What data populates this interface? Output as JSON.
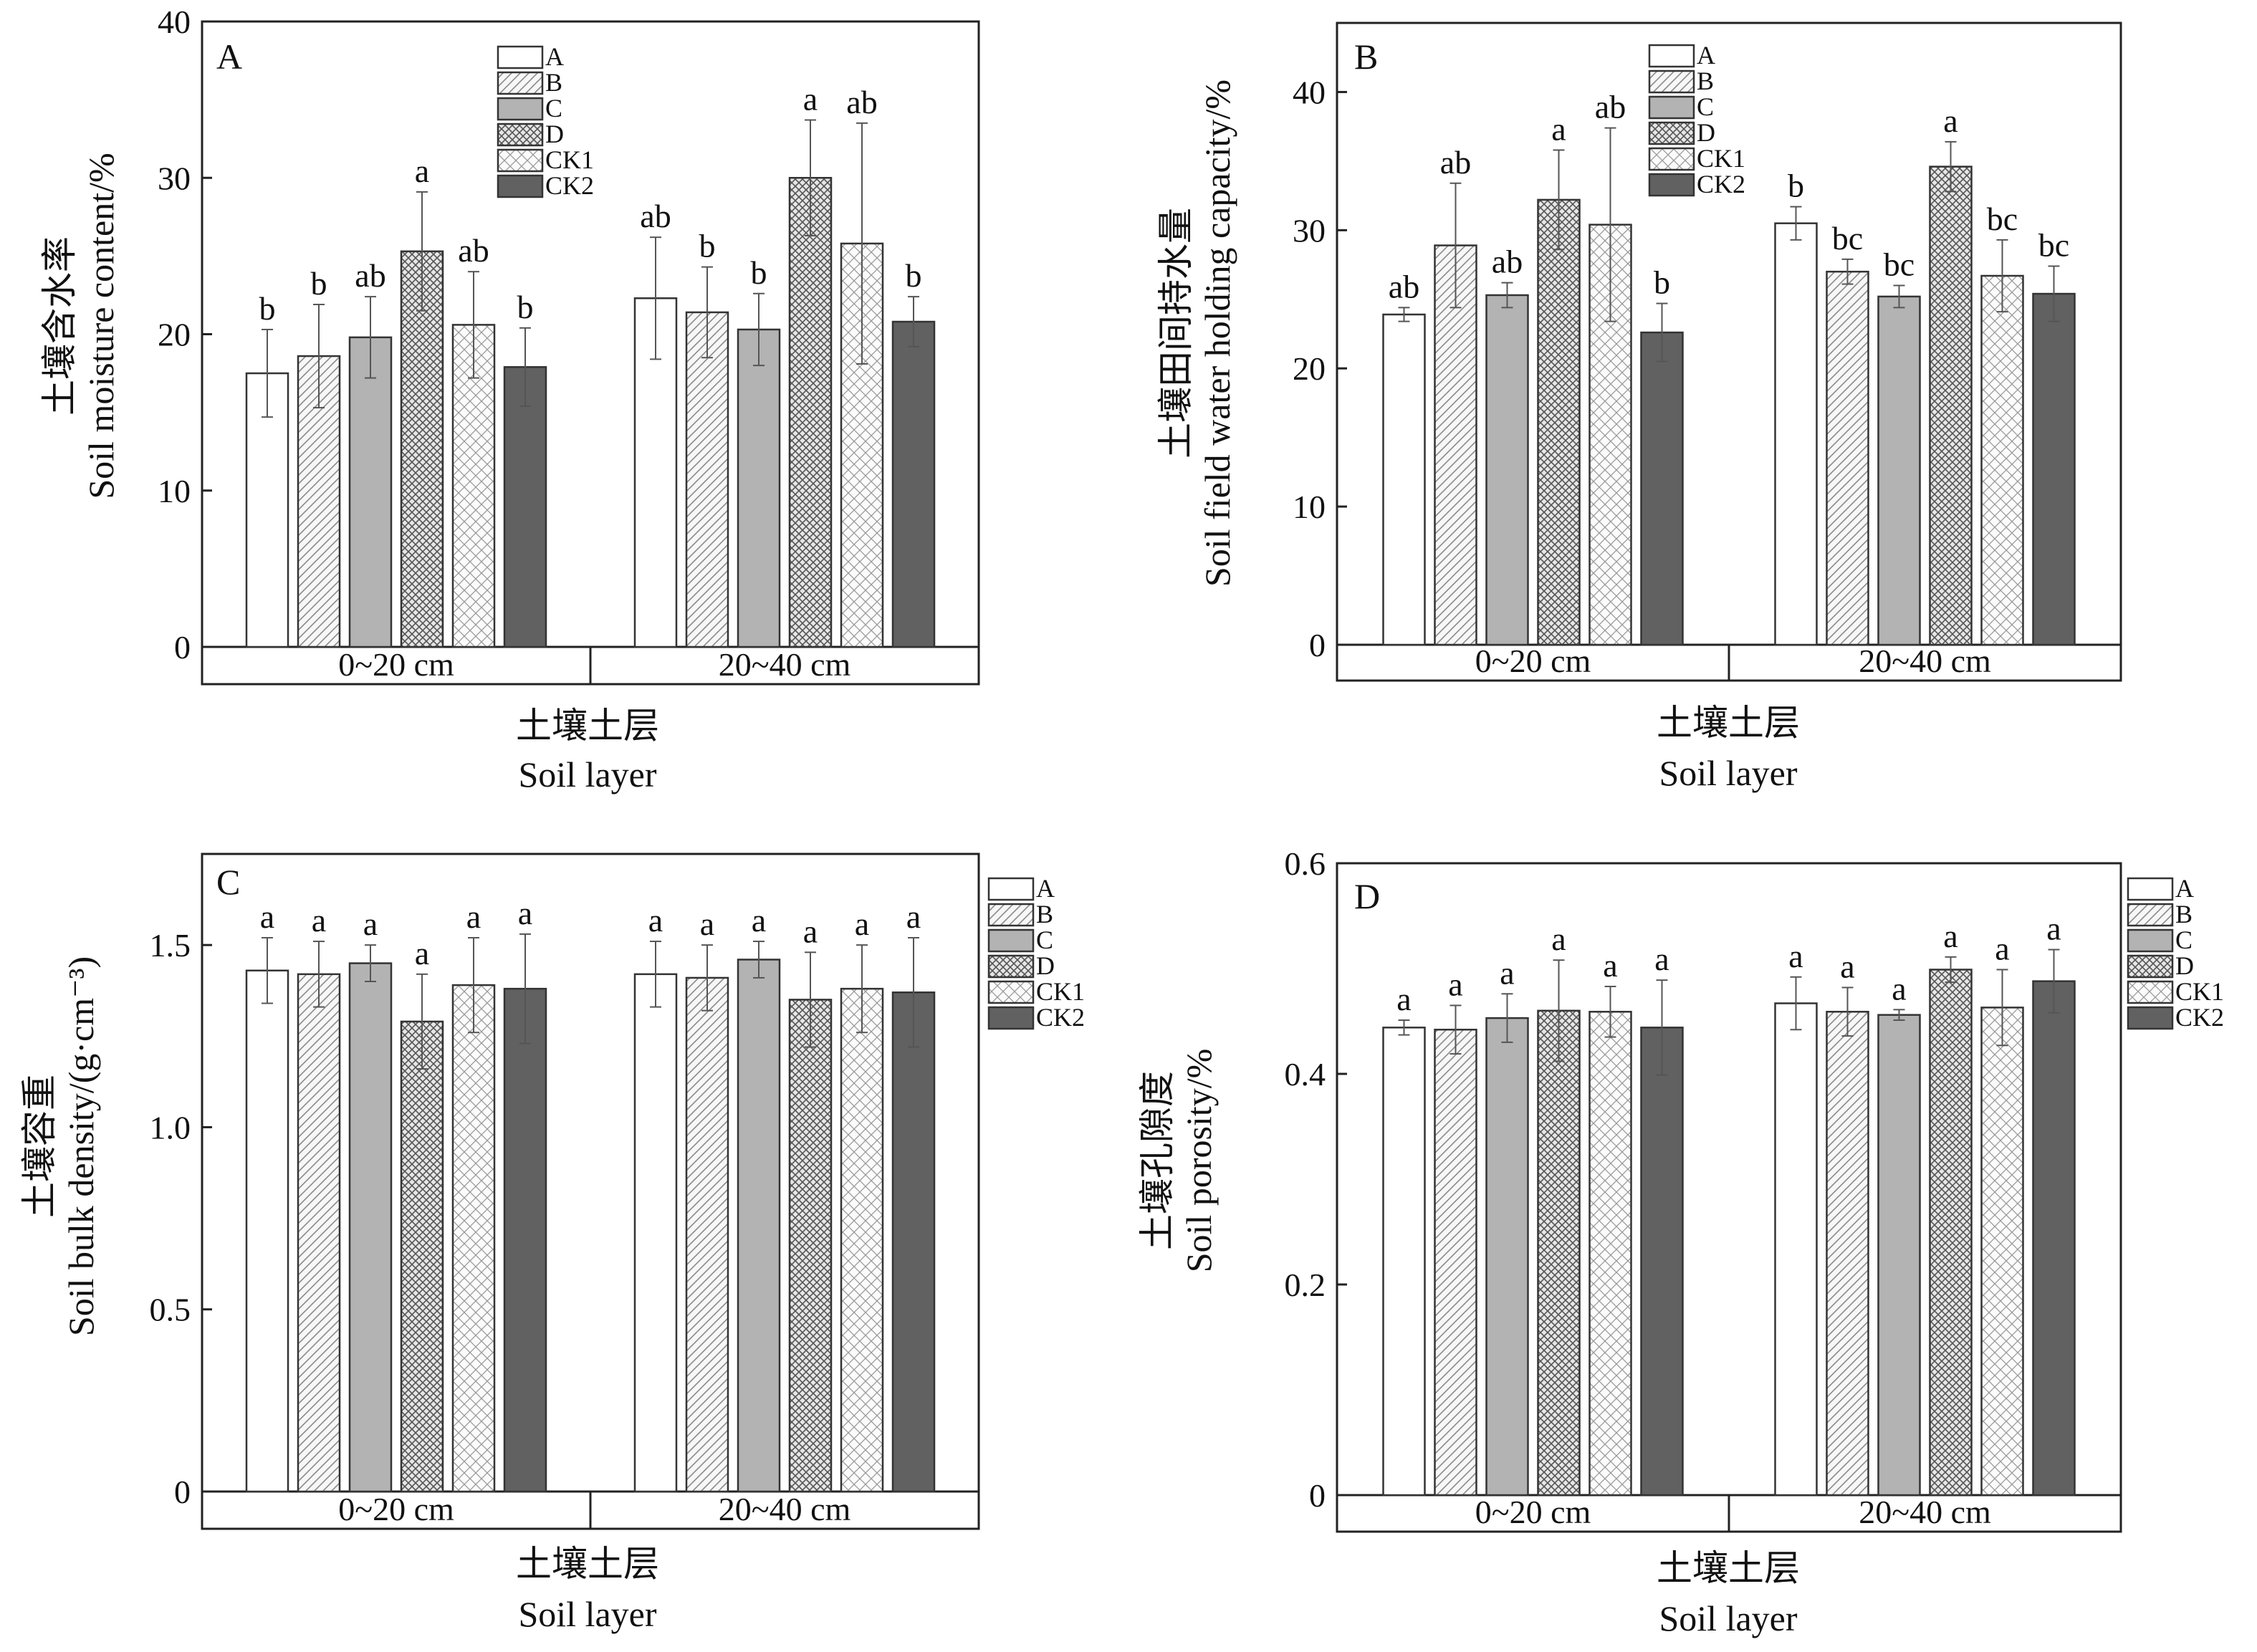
{
  "colors": {
    "axis": "#222222",
    "A": "#ffffff",
    "B": "#f1f1f1",
    "C": "#b3b3b3",
    "D": "#d9d9d9",
    "CK1": "#f3f3f3",
    "CK2": "#616161"
  },
  "legend_entries": [
    "A",
    "B",
    "C",
    "D",
    "CK1",
    "CK2"
  ],
  "chart_data": [
    {
      "type": "bar",
      "panel": "A",
      "ylabel_cn": "土壤含水率",
      "ylabel_en": "Soil moisture content/%",
      "xlabel_cn": "土壤土层",
      "xlabel_en": "Soil layer",
      "categories": [
        "0~20 cm",
        "20~40 cm"
      ],
      "ylim": [
        0,
        40
      ],
      "yticks": [
        "0",
        "10",
        "20",
        "30",
        "40"
      ],
      "legend_position": "top-center",
      "series": [
        {
          "name": "A",
          "values": [
            17.5,
            22.3
          ],
          "errors": [
            2.8,
            3.9
          ],
          "letters": [
            "b",
            "ab"
          ]
        },
        {
          "name": "B",
          "values": [
            18.6,
            21.4
          ],
          "errors": [
            3.3,
            2.9
          ],
          "letters": [
            "b",
            "b"
          ]
        },
        {
          "name": "C",
          "values": [
            19.8,
            20.3
          ],
          "errors": [
            2.6,
            2.3
          ],
          "letters": [
            "ab",
            "b"
          ]
        },
        {
          "name": "D",
          "values": [
            25.3,
            30.0
          ],
          "errors": [
            3.8,
            3.7
          ],
          "letters": [
            "a",
            "a"
          ]
        },
        {
          "name": "CK1",
          "values": [
            20.6,
            25.8
          ],
          "errors": [
            3.4,
            7.7
          ],
          "letters": [
            "ab",
            "ab"
          ]
        },
        {
          "name": "CK2",
          "values": [
            17.9,
            20.8
          ],
          "errors": [
            2.5,
            1.6
          ],
          "letters": [
            "b",
            "b"
          ]
        }
      ]
    },
    {
      "type": "bar",
      "panel": "B",
      "ylabel_cn": "土壤田间持水量",
      "ylabel_en": "Soil field water holding capacity/%",
      "xlabel_cn": "土壤土层",
      "xlabel_en": "Soil layer",
      "categories": [
        "0~20 cm",
        "20~40 cm"
      ],
      "ylim": [
        0,
        45
      ],
      "yticks": [
        "0",
        "10",
        "20",
        "30",
        "40"
      ],
      "legend_position": "top-center",
      "series": [
        {
          "name": "A",
          "values": [
            23.9,
            30.5
          ],
          "errors": [
            0.5,
            1.2
          ],
          "letters": [
            "ab",
            "b"
          ]
        },
        {
          "name": "B",
          "values": [
            28.9,
            27.0
          ],
          "errors": [
            4.5,
            0.9
          ],
          "letters": [
            "ab",
            "bc"
          ]
        },
        {
          "name": "C",
          "values": [
            25.3,
            25.2
          ],
          "errors": [
            0.9,
            0.8
          ],
          "letters": [
            "ab",
            "bc"
          ]
        },
        {
          "name": "D",
          "values": [
            32.2,
            34.6
          ],
          "errors": [
            3.6,
            1.8
          ],
          "letters": [
            "a",
            "a"
          ]
        },
        {
          "name": "CK1",
          "values": [
            30.4,
            26.7
          ],
          "errors": [
            7.0,
            2.6
          ],
          "letters": [
            "ab",
            "bc"
          ]
        },
        {
          "name": "CK2",
          "values": [
            22.6,
            25.4
          ],
          "errors": [
            2.1,
            2.0
          ],
          "letters": [
            "b",
            "bc"
          ]
        }
      ]
    },
    {
      "type": "bar",
      "panel": "C",
      "ylabel_cn": "土壤容重",
      "ylabel_en": "Soil bulk density/(g·cm⁻³)",
      "xlabel_cn": "土壤土层",
      "xlabel_en": "Soil layer",
      "categories": [
        "0~20 cm",
        "20~40 cm"
      ],
      "ylim": [
        0,
        1.75
      ],
      "yticks": [
        "0",
        "0.5",
        "1.0",
        "1.5"
      ],
      "legend_position": "right",
      "series": [
        {
          "name": "A",
          "values": [
            1.43,
            1.42
          ],
          "errors": [
            0.09,
            0.09
          ],
          "letters": [
            "a",
            "a"
          ]
        },
        {
          "name": "B",
          "values": [
            1.42,
            1.41
          ],
          "errors": [
            0.09,
            0.09
          ],
          "letters": [
            "a",
            "a"
          ]
        },
        {
          "name": "C",
          "values": [
            1.45,
            1.46
          ],
          "errors": [
            0.05,
            0.05
          ],
          "letters": [
            "a",
            "a"
          ]
        },
        {
          "name": "D",
          "values": [
            1.29,
            1.35
          ],
          "errors": [
            0.13,
            0.13
          ],
          "letters": [
            "a",
            "a"
          ]
        },
        {
          "name": "CK1",
          "values": [
            1.39,
            1.38
          ],
          "errors": [
            0.13,
            0.12
          ],
          "letters": [
            "a",
            "a"
          ]
        },
        {
          "name": "CK2",
          "values": [
            1.38,
            1.37
          ],
          "errors": [
            0.15,
            0.15
          ],
          "letters": [
            "a",
            "a"
          ]
        }
      ]
    },
    {
      "type": "bar",
      "panel": "D",
      "ylabel_cn": "土壤孔隙度",
      "ylabel_en": "Soil porosity/%",
      "xlabel_cn": "土壤土层",
      "xlabel_en": "Soil layer",
      "categories": [
        "0~20 cm",
        "20~40 cm"
      ],
      "ylim": [
        0,
        0.6
      ],
      "yticks": [
        "0",
        "0.2",
        "0.4",
        "0.6"
      ],
      "legend_position": "right",
      "series": [
        {
          "name": "A",
          "values": [
            0.444,
            0.467
          ],
          "errors": [
            0.007,
            0.025
          ],
          "letters": [
            "a",
            "a"
          ]
        },
        {
          "name": "B",
          "values": [
            0.442,
            0.459
          ],
          "errors": [
            0.023,
            0.023
          ],
          "letters": [
            "a",
            "a"
          ]
        },
        {
          "name": "C",
          "values": [
            0.453,
            0.456
          ],
          "errors": [
            0.023,
            0.005
          ],
          "letters": [
            "a",
            "a"
          ]
        },
        {
          "name": "D",
          "values": [
            0.46,
            0.499
          ],
          "errors": [
            0.048,
            0.012
          ],
          "letters": [
            "a",
            "a"
          ]
        },
        {
          "name": "CK1",
          "values": [
            0.459,
            0.463
          ],
          "errors": [
            0.024,
            0.036
          ],
          "letters": [
            "a",
            "a"
          ]
        },
        {
          "name": "CK2",
          "values": [
            0.444,
            0.488
          ],
          "errors": [
            0.045,
            0.03
          ],
          "letters": [
            "a",
            "a"
          ]
        }
      ]
    }
  ]
}
